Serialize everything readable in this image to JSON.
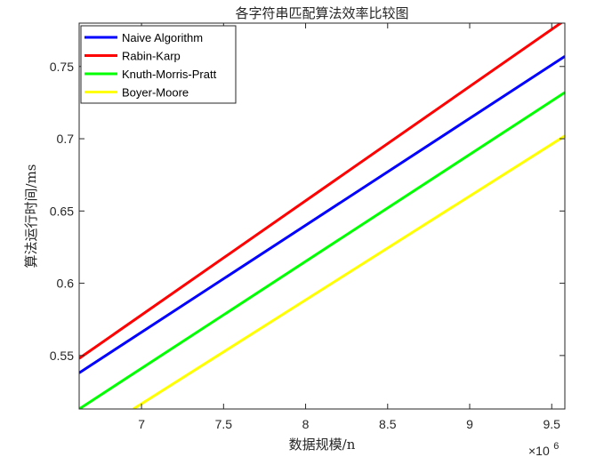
{
  "chart_data": {
    "type": "line",
    "title": "各字符串匹配算法效率比较图",
    "xlabel": "数据规模/n",
    "ylabel": "算法运行时间/ms",
    "x_exponent": {
      "base": "×10",
      "power": "6"
    },
    "xlim": [
      6.62,
      9.58
    ],
    "ylim": [
      0.513,
      0.78
    ],
    "x_ticks": [
      7,
      7.5,
      8,
      8.5,
      9,
      9.5
    ],
    "x_tick_labels": [
      "7",
      "7.5",
      "8",
      "8.5",
      "9",
      "9.5"
    ],
    "y_ticks": [
      0.55,
      0.6,
      0.65,
      0.7,
      0.75
    ],
    "y_tick_labels": [
      "0.55",
      "0.6",
      "0.65",
      "0.7",
      "0.75"
    ],
    "grid": false,
    "legend_position": "top-left",
    "series": [
      {
        "name": "Naive Algorithm",
        "color": "#0000ff",
        "x": [
          6.62,
          9.58
        ],
        "y": [
          0.538,
          0.757
        ]
      },
      {
        "name": "Rabin-Karp",
        "color": "#ff0000",
        "x": [
          6.62,
          9.58
        ],
        "y": [
          0.548,
          0.782
        ]
      },
      {
        "name": "Knuth-Morris-Pratt",
        "color": "#00ff00",
        "x": [
          6.62,
          9.58
        ],
        "y": [
          0.513,
          0.732
        ]
      },
      {
        "name": "Boyer-Moore",
        "color": "#ffff00",
        "x": [
          6.95,
          9.58
        ],
        "y": [
          0.513,
          0.702
        ]
      }
    ]
  }
}
